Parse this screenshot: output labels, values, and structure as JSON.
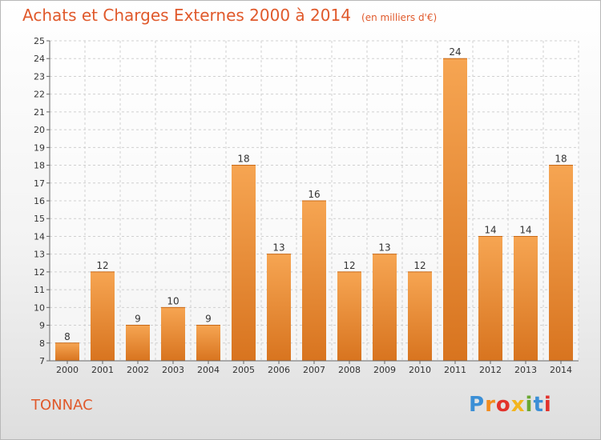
{
  "title": "Achats et Charges Externes 2000 à 2014",
  "unit": "(en milliers d'€)",
  "place": "TONNAC",
  "logo": {
    "text": "Proxiti",
    "letter_colors": [
      "#3b8fd6",
      "#f28c1e",
      "#e2322b",
      "#f2b51e",
      "#6aa832",
      "#3b8fd6",
      "#e2322b"
    ]
  },
  "colors": {
    "bar_light": "#f6a552",
    "bar_dark": "#d8741f",
    "accent": "#e0592b"
  },
  "chart_data": {
    "type": "bar",
    "categories": [
      "2000",
      "2001",
      "2002",
      "2003",
      "2004",
      "2005",
      "2006",
      "2007",
      "2008",
      "2009",
      "2010",
      "2011",
      "2012",
      "2013",
      "2014"
    ],
    "values": [
      8,
      12,
      9,
      10,
      9,
      18,
      13,
      16,
      12,
      13,
      12,
      24,
      14,
      14,
      18
    ],
    "title": "Achats et Charges Externes 2000 à 2014",
    "subtitle": "(en milliers d'€)",
    "xlabel": "",
    "ylabel": "",
    "ylim": [
      7,
      25
    ],
    "yticks": [
      7,
      8,
      9,
      10,
      11,
      12,
      13,
      14,
      15,
      16,
      17,
      18,
      19,
      20,
      21,
      22,
      23,
      24,
      25
    ],
    "grid": true
  }
}
